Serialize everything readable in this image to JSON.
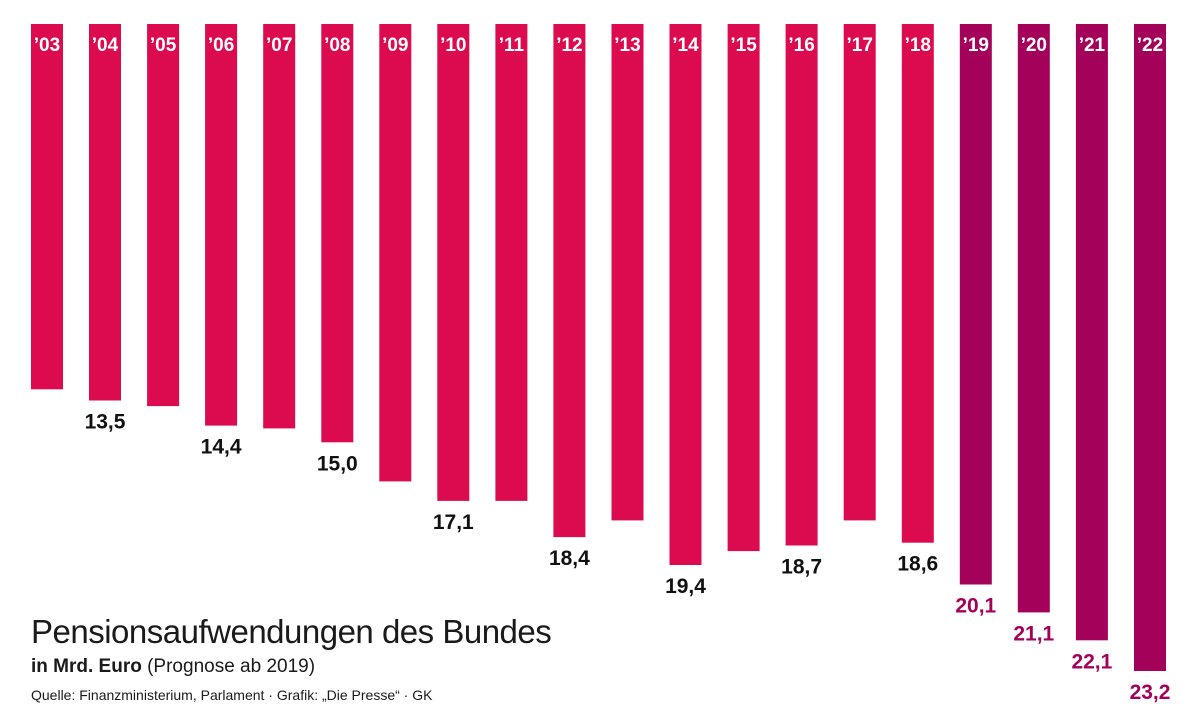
{
  "chart_data": {
    "type": "bar",
    "orientation": "hanging",
    "title": "Pensionsaufwendungen des Bundes",
    "unit_label": "in Mrd. Euro",
    "note": "(Prognose ab 2019)",
    "source": "Quelle: Finanzministerium, Parlament · Grafik: „Die Presse“ · GK",
    "categories": [
      "’03",
      "’04",
      "’05",
      "’06",
      "’07",
      "’08",
      "’09",
      "’10",
      "’11",
      "’12",
      "’13",
      "’14",
      "’15",
      "’16",
      "’17",
      "’18",
      "’19",
      "’20",
      "’21",
      "’22"
    ],
    "values": [
      13.1,
      13.5,
      13.7,
      14.4,
      14.5,
      15.0,
      16.4,
      17.1,
      17.1,
      18.4,
      17.8,
      19.4,
      18.9,
      18.7,
      17.8,
      18.6,
      20.1,
      21.1,
      22.1,
      23.2
    ],
    "value_labels": [
      "",
      "13,5",
      "",
      "14,4",
      "",
      "15,0",
      "",
      "17,1",
      "",
      "18,4",
      "",
      "19,4",
      "",
      "18,7",
      "",
      "18,6",
      "20,1",
      "21,1",
      "22,1",
      "23,2"
    ],
    "forecast_from_index": 16,
    "ylim": [
      0,
      23.2
    ],
    "colors": {
      "actual": "#dc0a4f",
      "forecast": "#a4015a",
      "actual_label": "#111111",
      "forecast_label": "#a4015a",
      "year_label": "#ffffff"
    }
  }
}
